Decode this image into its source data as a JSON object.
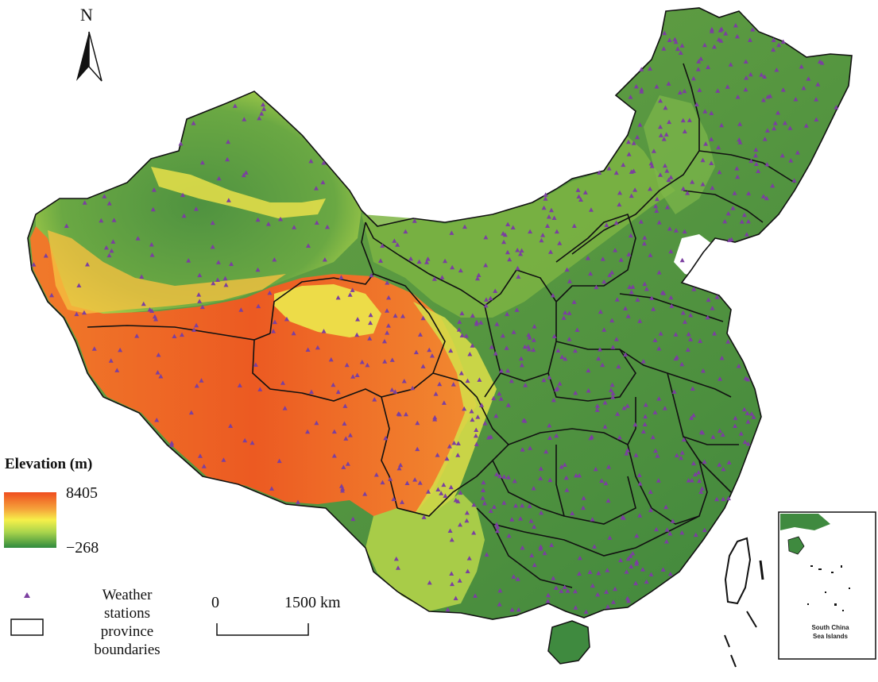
{
  "north_arrow": {
    "label": "N"
  },
  "legend": {
    "elevation_title": "Elevation (m)",
    "elevation_max": "8405",
    "elevation_min": "−268",
    "ramp_colors": [
      "#ef4d1e",
      "#f5a23a",
      "#f6f04a",
      "#a9d44c",
      "#2e8a3e"
    ],
    "station_label_lines": [
      "Weather",
      "stations"
    ],
    "province_label_lines": [
      "province",
      "boundaries"
    ],
    "station_marker_color": "#7b3fa0"
  },
  "scale_bar": {
    "start_label": "0",
    "end_label": "1500 km"
  },
  "inset": {
    "label_lines": [
      "South China",
      "Sea Islands"
    ]
  },
  "map_colors": {
    "lowland": "#3f8a3f",
    "plain": "#62a043",
    "midland": "#9ecb47",
    "highland_yellow": "#f0e64a",
    "plateau_orange": "#f08a2e",
    "plateau_red": "#ec5a22",
    "boundary": "#111111"
  }
}
